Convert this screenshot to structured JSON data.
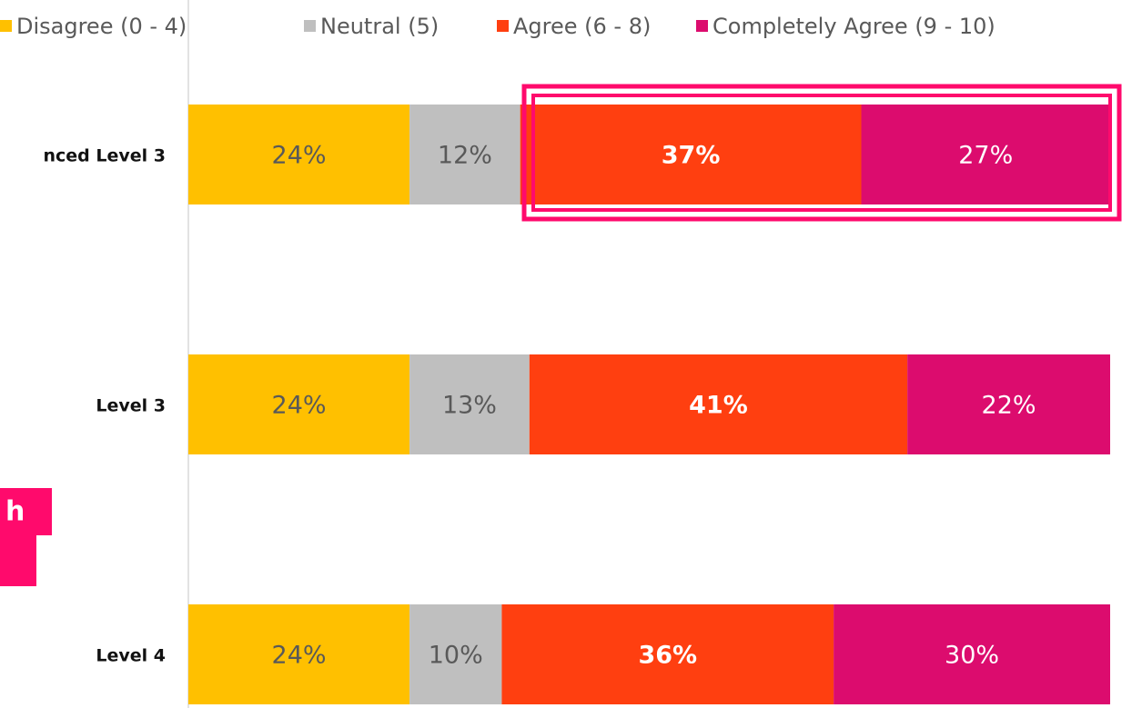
{
  "chart_data": {
    "type": "stacked-bar-horizontal",
    "categories": [
      "nced Level 3",
      "Level 3",
      "Level 4"
    ],
    "series": [
      {
        "name": "Disagree (0 - 4)",
        "color": "#ffc000",
        "values": [
          24,
          24,
          24
        ],
        "value_labels": [
          "24%",
          "24%",
          "24%"
        ]
      },
      {
        "name": "Neutral (5)",
        "color": "#bfbfbf",
        "values": [
          12,
          13,
          10
        ],
        "value_labels": [
          "12%",
          "13%",
          "10%"
        ]
      },
      {
        "name": "Agree (6 - 8)",
        "color": "#ff3f10",
        "values": [
          37,
          41,
          36
        ],
        "value_labels": [
          "37%",
          "41%",
          "36%"
        ]
      },
      {
        "name": "Completely Agree (9 - 10)",
        "color": "#dc0c6e",
        "values": [
          27,
          22,
          30
        ],
        "value_labels": [
          "27%",
          "22%",
          "30%"
        ]
      }
    ],
    "xlim": [
      0,
      100
    ],
    "annotation": "h"
  }
}
